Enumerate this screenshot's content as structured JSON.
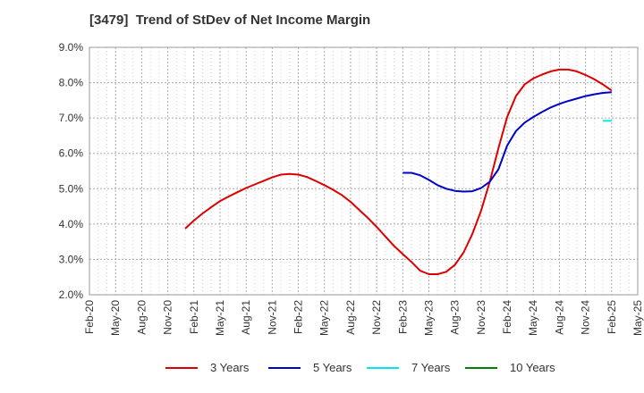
{
  "title": "[3479]  Trend of StDev of Net Income Margin",
  "chart_data": {
    "type": "line",
    "title": "[3479]  Trend of StDev of Net Income Margin",
    "xlabel": "",
    "ylabel": "",
    "ylim": [
      2.0,
      9.0
    ],
    "y_ticks": [
      "2.0%",
      "3.0%",
      "4.0%",
      "5.0%",
      "6.0%",
      "7.0%",
      "8.0%",
      "9.0%"
    ],
    "x_ticks": [
      "Feb-20",
      "May-20",
      "Aug-20",
      "Nov-20",
      "Feb-21",
      "May-21",
      "Aug-21",
      "Nov-21",
      "Feb-22",
      "May-22",
      "Aug-22",
      "Nov-22",
      "Feb-23",
      "May-23",
      "Aug-23",
      "Nov-23",
      "Feb-24",
      "May-24",
      "Aug-24",
      "Nov-24",
      "Feb-25",
      "May-25"
    ],
    "grid": true,
    "legend_position": "bottom",
    "series": [
      {
        "name": "3 Years",
        "color": "#dd0000",
        "points": [
          [
            "Jan-21",
            3.87
          ],
          [
            "Feb-21",
            4.1
          ],
          [
            "Mar-21",
            4.3
          ],
          [
            "Apr-21",
            4.48
          ],
          [
            "May-21",
            4.65
          ],
          [
            "Jun-21",
            4.78
          ],
          [
            "Jul-21",
            4.9
          ],
          [
            "Aug-21",
            5.02
          ],
          [
            "Sep-21",
            5.12
          ],
          [
            "Oct-21",
            5.22
          ],
          [
            "Nov-21",
            5.32
          ],
          [
            "Dec-21",
            5.4
          ],
          [
            "Jan-22",
            5.42
          ],
          [
            "Feb-22",
            5.4
          ],
          [
            "Mar-22",
            5.33
          ],
          [
            "Apr-22",
            5.22
          ],
          [
            "May-22",
            5.1
          ],
          [
            "Jun-22",
            4.97
          ],
          [
            "Jul-22",
            4.82
          ],
          [
            "Aug-22",
            4.63
          ],
          [
            "Sep-22",
            4.4
          ],
          [
            "Oct-22",
            4.17
          ],
          [
            "Nov-22",
            3.92
          ],
          [
            "Dec-22",
            3.65
          ],
          [
            "Jan-23",
            3.38
          ],
          [
            "Feb-23",
            3.15
          ],
          [
            "Mar-23",
            2.93
          ],
          [
            "Apr-23",
            2.68
          ],
          [
            "May-23",
            2.58
          ],
          [
            "Jun-23",
            2.58
          ],
          [
            "Jul-23",
            2.65
          ],
          [
            "Aug-23",
            2.85
          ],
          [
            "Sep-23",
            3.2
          ],
          [
            "Oct-23",
            3.72
          ],
          [
            "Nov-23",
            4.38
          ],
          [
            "Dec-23",
            5.2
          ],
          [
            "Jan-24",
            6.15
          ],
          [
            "Feb-24",
            7.03
          ],
          [
            "Mar-24",
            7.62
          ],
          [
            "Apr-24",
            7.95
          ],
          [
            "May-24",
            8.12
          ],
          [
            "Jun-24",
            8.23
          ],
          [
            "Jul-24",
            8.32
          ],
          [
            "Aug-24",
            8.37
          ],
          [
            "Sep-24",
            8.37
          ],
          [
            "Oct-24",
            8.32
          ],
          [
            "Nov-24",
            8.22
          ],
          [
            "Dec-24",
            8.1
          ],
          [
            "Jan-25",
            7.95
          ],
          [
            "Feb-25",
            7.78
          ]
        ]
      },
      {
        "name": "5 Years",
        "color": "#0000cc",
        "points": [
          [
            "Feb-23",
            5.45
          ],
          [
            "Mar-23",
            5.45
          ],
          [
            "Apr-23",
            5.38
          ],
          [
            "May-23",
            5.25
          ],
          [
            "Jun-23",
            5.1
          ],
          [
            "Jul-23",
            5.0
          ],
          [
            "Aug-23",
            4.94
          ],
          [
            "Sep-23",
            4.92
          ],
          [
            "Oct-23",
            4.93
          ],
          [
            "Nov-23",
            5.02
          ],
          [
            "Dec-23",
            5.2
          ],
          [
            "Jan-24",
            5.55
          ],
          [
            "Feb-24",
            6.22
          ],
          [
            "Mar-24",
            6.63
          ],
          [
            "Apr-24",
            6.87
          ],
          [
            "May-24",
            7.03
          ],
          [
            "Jun-24",
            7.17
          ],
          [
            "Jul-24",
            7.3
          ],
          [
            "Aug-24",
            7.4
          ],
          [
            "Sep-24",
            7.48
          ],
          [
            "Oct-24",
            7.55
          ],
          [
            "Nov-24",
            7.62
          ],
          [
            "Dec-24",
            7.67
          ],
          [
            "Jan-25",
            7.71
          ],
          [
            "Feb-25",
            7.73
          ]
        ]
      },
      {
        "name": "7 Years",
        "color": "#00e5ee",
        "points": [
          [
            "Jan-25",
            6.92
          ],
          [
            "Feb-25",
            6.92
          ]
        ]
      },
      {
        "name": "10 Years",
        "color": "#008000",
        "points": []
      }
    ]
  }
}
